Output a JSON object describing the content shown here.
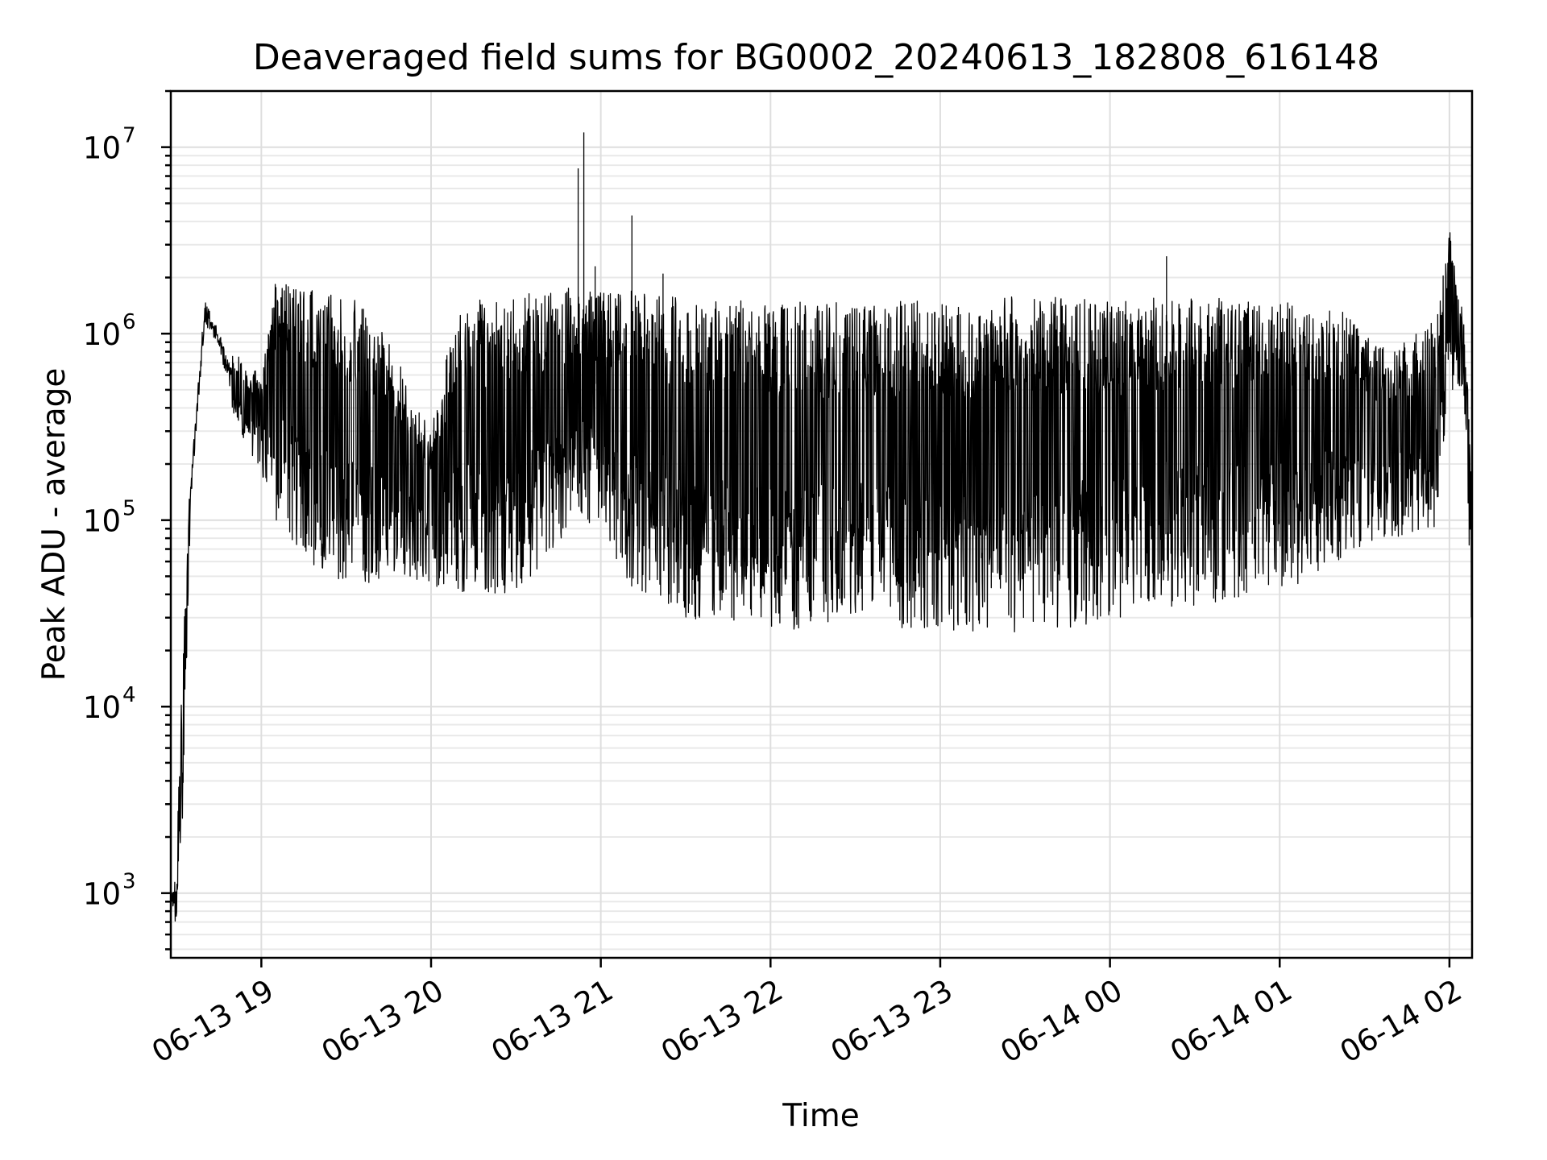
{
  "chart_data": {
    "type": "line",
    "title": "Deaveraged field sums for BG0002_20240613_182808_616148",
    "xlabel": "Time",
    "ylabel": "Peak ADU - average",
    "yscale": "log",
    "grid": true,
    "grid_minor": true,
    "xlim": [
      "2024-06-13 18:28",
      "2024-06-14 02:08"
    ],
    "ylim": [
      450,
      20000000
    ],
    "x_ticks": [
      {
        "value": "2024-06-13 19:00",
        "label": "06-13 19"
      },
      {
        "value": "2024-06-13 20:00",
        "label": "06-13 20"
      },
      {
        "value": "2024-06-13 21:00",
        "label": "06-13 21"
      },
      {
        "value": "2024-06-13 22:00",
        "label": "06-13 22"
      },
      {
        "value": "2024-06-13 23:00",
        "label": "06-13 23"
      },
      {
        "value": "2024-06-14 00:00",
        "label": "06-14 00"
      },
      {
        "value": "2024-06-14 01:00",
        "label": "06-14 01"
      },
      {
        "value": "2024-06-14 02:00",
        "label": "06-14 02"
      }
    ],
    "y_ticks": [
      {
        "value": 1000,
        "base": "10",
        "exp": "3"
      },
      {
        "value": 10000,
        "base": "10",
        "exp": "4"
      },
      {
        "value": 100000,
        "base": "10",
        "exp": "5"
      },
      {
        "value": 1000000,
        "base": "10",
        "exp": "6"
      },
      {
        "value": 10000000,
        "base": "10",
        "exp": "7"
      }
    ],
    "line_color": "#000000",
    "series": [
      {
        "description_source": "envelope of dense oscillating signal; upper and lower bounds per time (log values in data units)",
        "envelope": [
          {
            "t": "2024-06-13 18:28",
            "hi": 1000,
            "lo": 700
          },
          {
            "t": "2024-06-13 18:30",
            "hi": 1800,
            "lo": 700
          },
          {
            "t": "2024-06-13 18:32",
            "hi": 15000,
            "lo": 2000
          },
          {
            "t": "2024-06-13 18:35",
            "hi": 200000,
            "lo": 100000
          },
          {
            "t": "2024-06-13 18:40",
            "hi": 1900000,
            "lo": 900000
          },
          {
            "t": "2024-06-13 18:45",
            "hi": 1200000,
            "lo": 700000
          },
          {
            "t": "2024-06-13 18:50",
            "hi": 800000,
            "lo": 350000
          },
          {
            "t": "2024-06-13 19:00",
            "hi": 600000,
            "lo": 180000
          },
          {
            "t": "2024-06-13 19:05",
            "hi": 1900000,
            "lo": 100000
          },
          {
            "t": "2024-06-13 19:20",
            "hi": 1700000,
            "lo": 50000
          },
          {
            "t": "2024-06-13 19:35",
            "hi": 1500000,
            "lo": 45000
          },
          {
            "t": "2024-06-13 19:50",
            "hi": 700000,
            "lo": 50000
          },
          {
            "t": "2024-06-13 20:00",
            "hi": 300000,
            "lo": 45000
          },
          {
            "t": "2024-06-13 20:10",
            "hi": 1600000,
            "lo": 40000
          },
          {
            "t": "2024-06-13 20:20",
            "hi": 1500000,
            "lo": 40000
          },
          {
            "t": "2024-06-13 20:30",
            "hi": 1600000,
            "lo": 40000
          },
          {
            "t": "2024-06-13 20:40",
            "hi": 1700000,
            "lo": 60000
          },
          {
            "t": "2024-06-13 20:55",
            "hi": 1800000,
            "lo": 100000
          },
          {
            "t": "2024-06-13 21:10",
            "hi": 1700000,
            "lo": 45000
          },
          {
            "t": "2024-06-13 21:30",
            "hi": 1600000,
            "lo": 30000
          },
          {
            "t": "2024-06-13 22:00",
            "hi": 1500000,
            "lo": 25000
          },
          {
            "t": "2024-06-13 22:30",
            "hi": 1500000,
            "lo": 28000
          },
          {
            "t": "2024-06-13 23:00",
            "hi": 1500000,
            "lo": 25000
          },
          {
            "t": "2024-06-13 23:30",
            "hi": 1600000,
            "lo": 25000
          },
          {
            "t": "2024-06-14 00:00",
            "hi": 1500000,
            "lo": 28000
          },
          {
            "t": "2024-06-14 00:30",
            "hi": 1600000,
            "lo": 35000
          },
          {
            "t": "2024-06-14 01:00",
            "hi": 1500000,
            "lo": 40000
          },
          {
            "t": "2024-06-14 01:20",
            "hi": 1400000,
            "lo": 60000
          },
          {
            "t": "2024-06-14 01:40",
            "hi": 800000,
            "lo": 80000
          },
          {
            "t": "2024-06-14 01:55",
            "hi": 1200000,
            "lo": 90000
          },
          {
            "t": "2024-06-14 02:00",
            "hi": 3800000,
            "lo": 500000
          },
          {
            "t": "2024-06-14 02:05",
            "hi": 1300000,
            "lo": 500000
          },
          {
            "t": "2024-06-14 02:08",
            "hi": 200000,
            "lo": 22000
          }
        ],
        "spikes": [
          {
            "t": "2024-06-13 20:52",
            "value": 7700000
          },
          {
            "t": "2024-06-13 20:54",
            "value": 12000000
          },
          {
            "t": "2024-06-13 21:11",
            "value": 4300000
          },
          {
            "t": "2024-06-13 21:22",
            "value": 2100000
          },
          {
            "t": "2024-06-14 00:20",
            "value": 2600000
          },
          {
            "t": "2024-06-13 20:58",
            "value": 2300000
          }
        ]
      }
    ]
  }
}
